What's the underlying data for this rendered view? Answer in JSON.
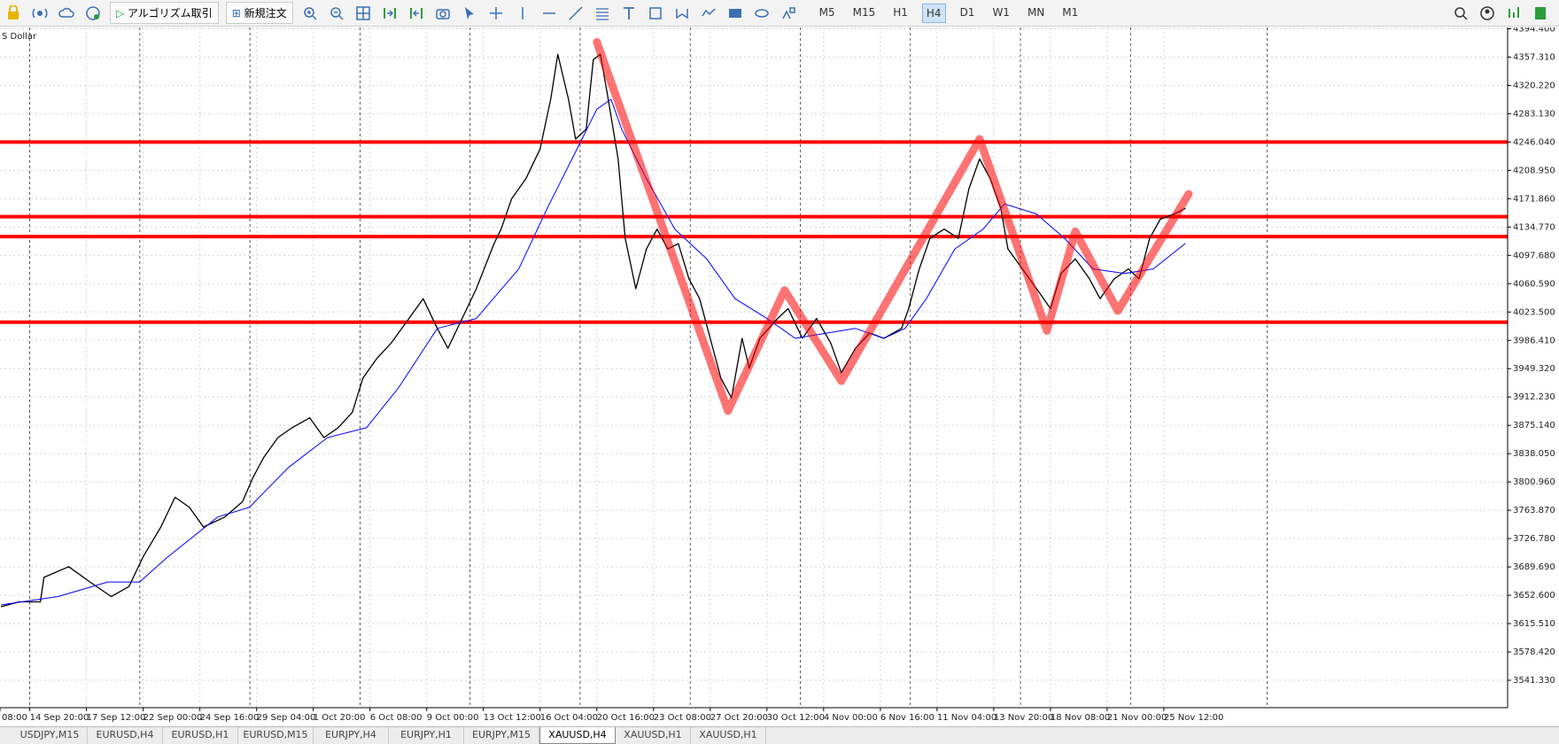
{
  "toolbar": {
    "buttons": [
      "アルゴリズム取引",
      "新規注文"
    ],
    "timeframes": [
      "M5",
      "M15",
      "H1",
      "H4",
      "D1",
      "W1",
      "MN",
      "M1"
    ],
    "active_timeframe": 3
  },
  "tabs": {
    "items": [
      "USDJPY,M15",
      "EURUSD,H4",
      "EURUSD,H1",
      "EURUSD,M15",
      "EURJPY,H4",
      "EURJPY,H1",
      "EURJPY,M15",
      "XAUUSD,H4",
      "XAUUSD,H1",
      "XAUUSD,H1"
    ],
    "active": 7
  },
  "chart_data": {
    "type": "line",
    "title": "S Dollar",
    "xlim": [
      7.6,
      433
    ],
    "ylim": [
      3505.4,
      4396.1
    ],
    "xticks": [
      {
        "value": 0,
        "label": "08:00"
      },
      {
        "value": 16,
        "label": "14 Sep 20:00"
      },
      {
        "value": 32,
        "label": "17 Sep 12:00"
      },
      {
        "value": 48,
        "label": "22 Sep 00:00"
      },
      {
        "value": 64,
        "label": "24 Sep 16:00"
      },
      {
        "value": 80,
        "label": "29 Sep 04:00"
      },
      {
        "value": 96,
        "label": "1 Oct 20:00"
      },
      {
        "value": 112,
        "label": "6 Oct 08:00"
      },
      {
        "value": 128,
        "label": "9 Oct 00:00"
      },
      {
        "value": 144,
        "label": "13 Oct 12:00"
      },
      {
        "value": 160,
        "label": "16 Oct 04:00"
      },
      {
        "value": 176,
        "label": "20 Oct 16:00"
      },
      {
        "value": 192,
        "label": "23 Oct 08:00"
      },
      {
        "value": 208,
        "label": "27 Oct 20:00"
      },
      {
        "value": 224,
        "label": "30 Oct 12:00"
      },
      {
        "value": 240,
        "label": "4 Nov 00:00"
      },
      {
        "value": 256,
        "label": "6 Nov 16:00"
      },
      {
        "value": 272,
        "label": "11 Nov 04:00"
      },
      {
        "value": 288,
        "label": "13 Nov 20:00"
      },
      {
        "value": 304,
        "label": "18 Nov 08:00"
      },
      {
        "value": 320,
        "label": "21 Nov 00:00"
      },
      {
        "value": 336,
        "label": "25 Nov 12:00"
      }
    ],
    "yticks": [
      {
        "value": 4394.4,
        "label": "4394.400"
      },
      {
        "value": 4357.31,
        "label": "4357.310"
      },
      {
        "value": 4320.22,
        "label": "4320.220"
      },
      {
        "value": 4283.13,
        "label": "4283.130"
      },
      {
        "value": 4246.04,
        "label": "4246.040"
      },
      {
        "value": 4208.95,
        "label": "4208.950"
      },
      {
        "value": 4171.86,
        "label": "4171.860"
      },
      {
        "value": 4134.77,
        "label": "4134.770"
      },
      {
        "value": 4097.68,
        "label": "4097.680"
      },
      {
        "value": 4060.59,
        "label": "4060.590"
      },
      {
        "value": 4023.5,
        "label": "4023.500"
      },
      {
        "value": 3986.41,
        "label": "3986.410"
      },
      {
        "value": 3949.32,
        "label": "3949.320"
      },
      {
        "value": 3912.23,
        "label": "3912.230"
      },
      {
        "value": 3875.14,
        "label": "3875.140"
      },
      {
        "value": 3838.05,
        "label": "3838.050"
      },
      {
        "value": 3800.96,
        "label": "3800.960"
      },
      {
        "value": 3763.87,
        "label": "3763.870"
      },
      {
        "value": 3726.78,
        "label": "3726.780"
      },
      {
        "value": 3689.69,
        "label": "3689.690"
      },
      {
        "value": 3652.6,
        "label": "3652.600"
      },
      {
        "value": 3615.51,
        "label": "3615.510"
      },
      {
        "value": 3578.42,
        "label": "3578.420"
      },
      {
        "value": 3541.33,
        "label": "3541.330"
      }
    ],
    "grid": true,
    "series": [
      {
        "color": "#000000",
        "width": 1.3,
        "x": [
          8,
          13,
          19,
          20,
          27,
          33,
          39,
          44,
          48,
          53,
          57,
          61,
          65,
          71,
          76,
          79,
          82,
          86,
          90,
          95,
          99,
          103,
          107,
          110,
          114,
          118,
          123,
          127,
          131,
          134,
          138,
          142,
          147,
          149,
          152,
          156,
          160,
          163,
          165,
          168,
          170,
          173,
          175,
          177,
          179,
          182,
          184,
          187,
          190,
          193,
          196,
          199,
          202,
          205,
          208,
          211,
          214,
          217,
          219,
          222,
          227,
          230,
          234,
          238,
          242,
          245,
          249,
          253,
          257,
          262,
          264,
          267,
          270,
          274,
          278,
          281,
          284,
          287,
          290,
          292,
          297,
          301,
          304,
          307,
          311,
          315,
          318,
          322,
          326,
          329,
          332,
          335,
          339,
          342
        ],
        "values": [
          3637.7,
          3644,
          3644,
          3676,
          3690,
          3670,
          3651,
          3664,
          3703,
          3742,
          3781,
          3768,
          3742,
          3755,
          3775,
          3807,
          3833,
          3859,
          3872,
          3885,
          3859,
          3872,
          3892,
          3937,
          3963,
          3983,
          4015,
          4041,
          4002,
          3976,
          4015,
          4054,
          4113,
          4132,
          4172,
          4198,
          4237,
          4302,
          4361,
          4302,
          4250,
          4263,
          4354,
          4361,
          4308,
          4224,
          4120,
          4054,
          4106,
          4132,
          4106,
          4113,
          4067,
          4041,
          3989,
          3937,
          3911,
          3989,
          3950,
          3989,
          4015,
          4028,
          3989,
          4015,
          3983,
          3944,
          3976,
          3996,
          3989,
          4002,
          4028,
          4080,
          4120,
          4132,
          4120,
          4185,
          4224,
          4198,
          4159,
          4106,
          4074,
          4048,
          4028,
          4074,
          4093,
          4067,
          4041,
          4067,
          4080,
          4067,
          4120,
          4145,
          4152,
          4159
        ]
      },
      {
        "color": "#0000ff",
        "width": 1,
        "x": [
          8,
          24,
          38,
          47,
          55,
          69,
          78,
          89,
          100,
          111,
          120,
          131,
          142,
          154,
          162,
          169,
          176,
          180,
          183,
          190,
          198,
          207,
          215,
          224,
          232,
          241,
          249,
          257,
          263,
          269,
          277,
          285,
          291,
          300,
          308,
          316,
          325,
          333,
          342
        ],
        "values": [
          3640,
          3651,
          3670,
          3670,
          3703,
          3755,
          3768,
          3820,
          3859,
          3872,
          3924,
          4002,
          4015,
          4080,
          4159,
          4224,
          4289,
          4302,
          4263,
          4198,
          4132,
          4093,
          4041,
          4015,
          3989,
          3996,
          4002,
          3989,
          4002,
          4041,
          4106,
          4132,
          4165,
          4152,
          4120,
          4080,
          4074,
          4080,
          4113
        ]
      },
      {
        "color": "#ff0000",
        "width": 9,
        "opacity": 0.55,
        "x": [
          176,
          213,
          229,
          245,
          284,
          303,
          311,
          323,
          343
        ],
        "values": [
          4377,
          3894,
          4052,
          3933,
          4250,
          3999,
          4129,
          4025,
          4178
        ]
      }
    ],
    "levels": [
      4246.0,
      4148.3,
      4122.2,
      4010.2
    ],
    "level_color": "#ff0000"
  }
}
